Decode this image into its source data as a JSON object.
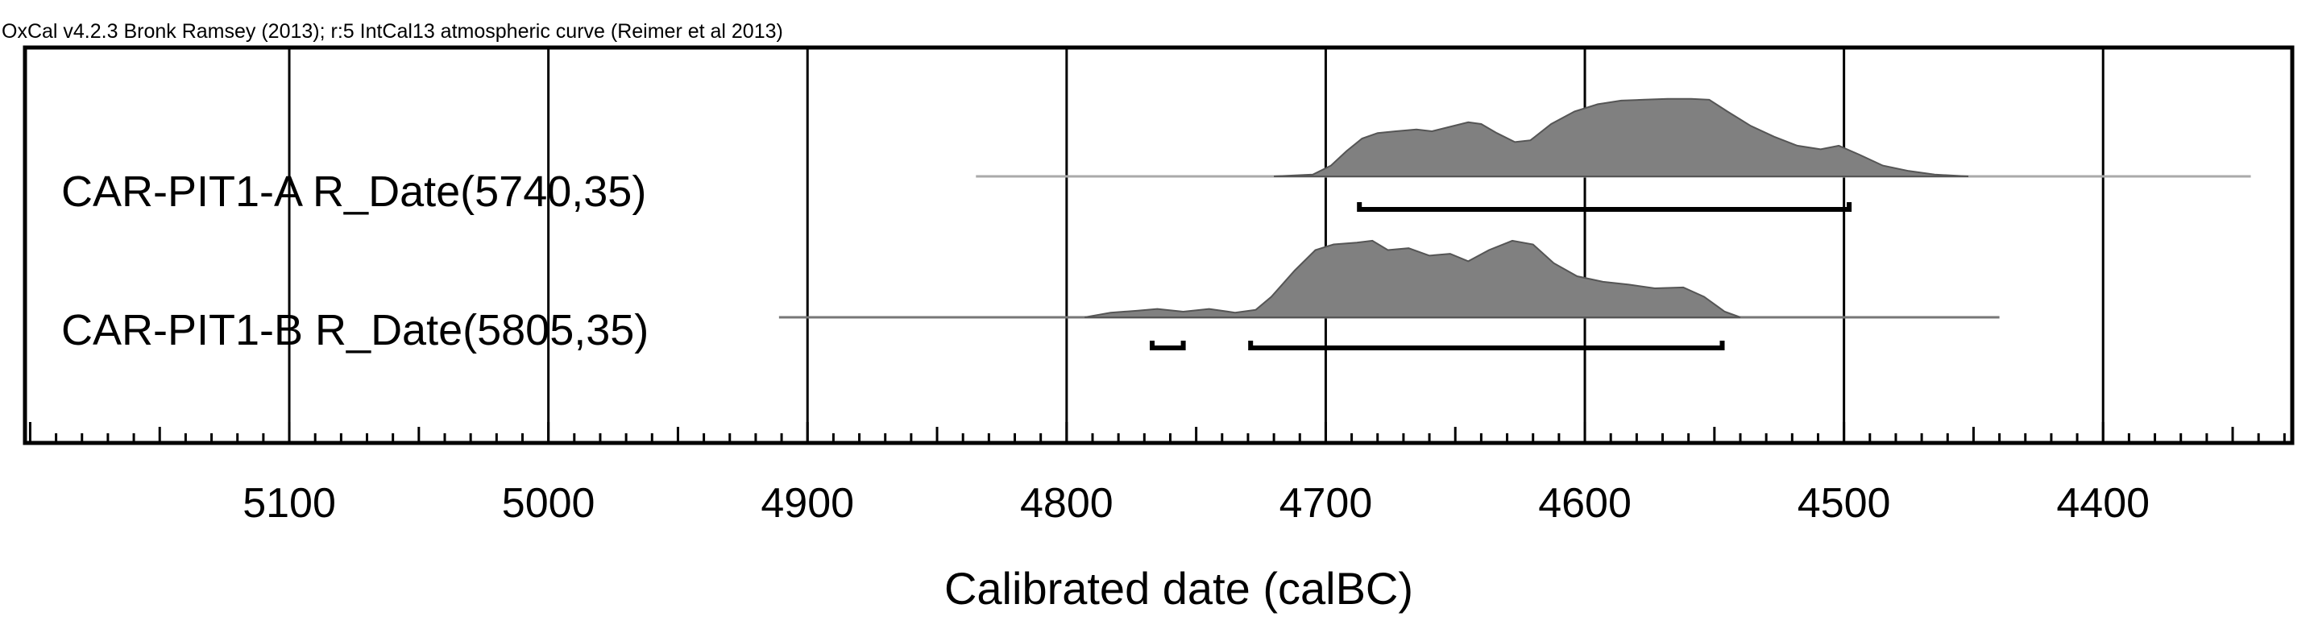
{
  "chart_data": {
    "type": "area",
    "title": "OxCal v4.2.3 Bronk Ramsey (2013); r:5 IntCal13 atmospheric curve (Reimer et al 2013)",
    "xlabel": "Calibrated date (calBC)",
    "ylabel": "",
    "x_reversed": true,
    "xlim": [
      5202,
      4327
    ],
    "x_ticks": [
      5100,
      5000,
      4900,
      4800,
      4700,
      4600,
      4500,
      4400
    ],
    "grid": true,
    "series": [
      {
        "name": "CAR-PIT1-A R_Date(5740,35)",
        "range_line": [
          4835,
          4343
        ],
        "hpd_ranges": [
          [
            4687,
            4498
          ]
        ],
        "distribution": [
          [
            4720,
            0.0
          ],
          [
            4705,
            0.02
          ],
          [
            4698,
            0.12
          ],
          [
            4692,
            0.28
          ],
          [
            4686,
            0.42
          ],
          [
            4680,
            0.48
          ],
          [
            4673,
            0.5
          ],
          [
            4665,
            0.52
          ],
          [
            4659,
            0.5
          ],
          [
            4652,
            0.55
          ],
          [
            4645,
            0.6
          ],
          [
            4640,
            0.58
          ],
          [
            4634,
            0.48
          ],
          [
            4627,
            0.38
          ],
          [
            4621,
            0.4
          ],
          [
            4613,
            0.58
          ],
          [
            4604,
            0.72
          ],
          [
            4595,
            0.8
          ],
          [
            4586,
            0.84
          ],
          [
            4577,
            0.85
          ],
          [
            4568,
            0.86
          ],
          [
            4559,
            0.86
          ],
          [
            4552,
            0.85
          ],
          [
            4545,
            0.72
          ],
          [
            4536,
            0.56
          ],
          [
            4527,
            0.44
          ],
          [
            4518,
            0.34
          ],
          [
            4509,
            0.3
          ],
          [
            4502,
            0.34
          ],
          [
            4494,
            0.24
          ],
          [
            4485,
            0.12
          ],
          [
            4475,
            0.06
          ],
          [
            4465,
            0.02
          ],
          [
            4452,
            0.0
          ]
        ]
      },
      {
        "name": "CAR-PIT1-B R_Date(5805,35)",
        "range_line": [
          4911,
          4440
        ],
        "hpd_ranges": [
          [
            4767,
            4755
          ],
          [
            4729,
            4547
          ]
        ],
        "distribution": [
          [
            4793,
            0.0
          ],
          [
            4783,
            0.05
          ],
          [
            4773,
            0.07
          ],
          [
            4765,
            0.09
          ],
          [
            4755,
            0.06
          ],
          [
            4745,
            0.09
          ],
          [
            4735,
            0.05
          ],
          [
            4727,
            0.08
          ],
          [
            4721,
            0.22
          ],
          [
            4712,
            0.5
          ],
          [
            4704,
            0.72
          ],
          [
            4697,
            0.78
          ],
          [
            4688,
            0.8
          ],
          [
            4682,
            0.82
          ],
          [
            4676,
            0.72
          ],
          [
            4668,
            0.74
          ],
          [
            4660,
            0.66
          ],
          [
            4652,
            0.68
          ],
          [
            4645,
            0.6
          ],
          [
            4637,
            0.72
          ],
          [
            4628,
            0.82
          ],
          [
            4620,
            0.78
          ],
          [
            4612,
            0.58
          ],
          [
            4603,
            0.44
          ],
          [
            4593,
            0.38
          ],
          [
            4583,
            0.35
          ],
          [
            4573,
            0.31
          ],
          [
            4562,
            0.32
          ],
          [
            4554,
            0.22
          ],
          [
            4546,
            0.06
          ],
          [
            4540,
            0.0
          ]
        ]
      }
    ]
  },
  "colors": {
    "distribution_fill": "#808080",
    "distribution_stroke": "#555555",
    "range_line_A": "#aaaaaa",
    "range_line_B": "#777777",
    "frame": "#000000"
  }
}
